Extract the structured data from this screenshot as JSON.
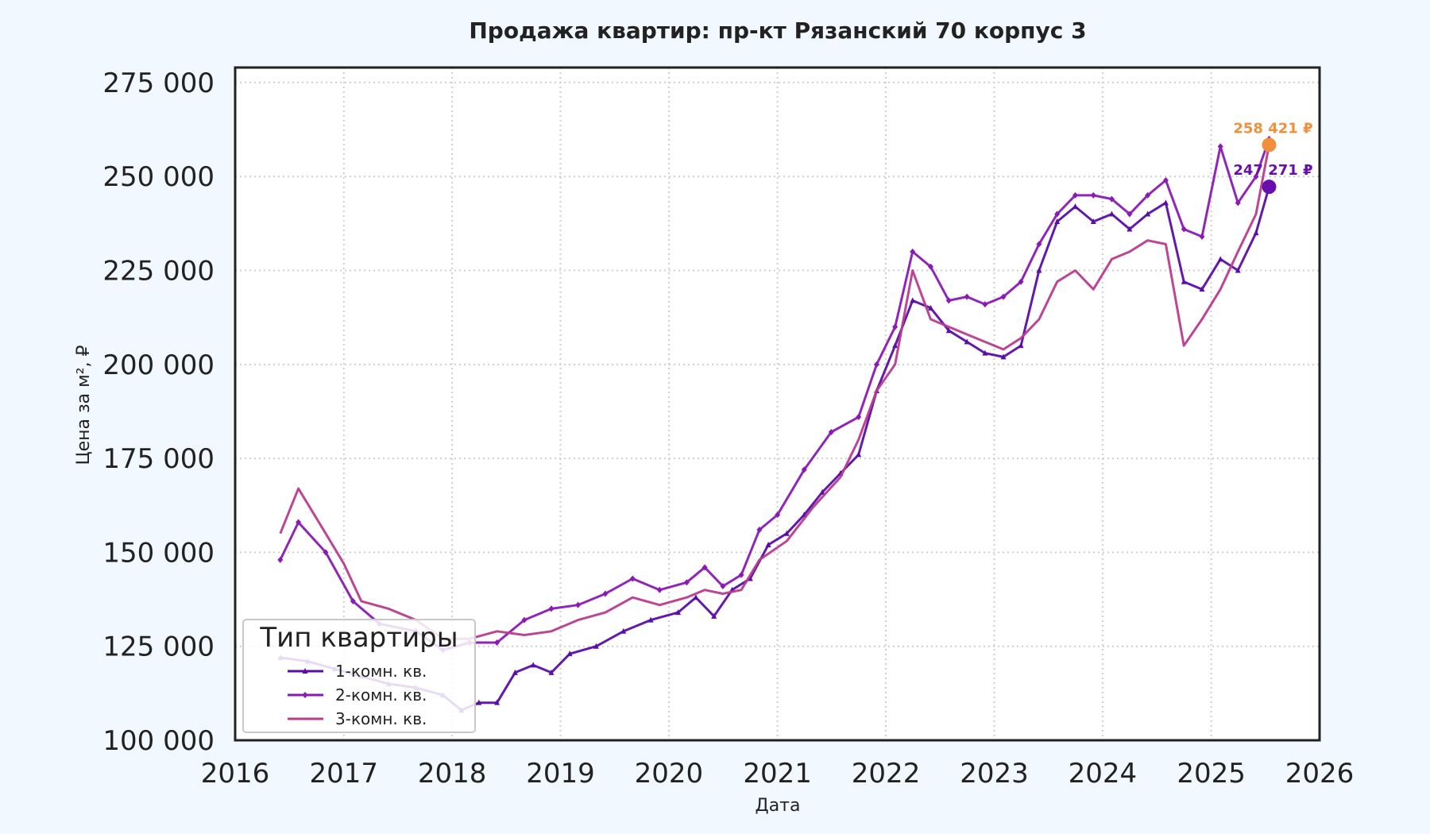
{
  "chart_data": {
    "type": "line",
    "title": "Продажа квартир: пр-кт Рязанский 70 корпус 3",
    "xlabel": "Дата",
    "ylabel": "Цена за м², ₽",
    "x_ticks": [
      "2016",
      "2017",
      "2018",
      "2019",
      "2020",
      "2021",
      "2022",
      "2023",
      "2024",
      "2025",
      "2026"
    ],
    "y_ticks": [
      "100 000",
      "125 000",
      "150 000",
      "175 000",
      "200 000",
      "225 000",
      "250 000",
      "275 000"
    ],
    "xlim": [
      "2016-01-01",
      "2026-01-01"
    ],
    "ylim": [
      100000,
      279000
    ],
    "grid": true,
    "legend": {
      "title": "Тип квартиры",
      "placement": "lower-left"
    },
    "series": [
      {
        "name": "1-комн. кв.",
        "color": "#5a0ea8",
        "marker": "triangle",
        "points": [
          [
            "2016-06-01",
            122000
          ],
          [
            "2016-09-01",
            121000
          ],
          [
            "2016-12-01",
            119000
          ],
          [
            "2017-03-01",
            117000
          ],
          [
            "2017-06-01",
            115000
          ],
          [
            "2017-09-01",
            114000
          ],
          [
            "2017-12-01",
            112000
          ],
          [
            "2018-02-01",
            108000
          ],
          [
            "2018-04-01",
            110000
          ],
          [
            "2018-06-01",
            110000
          ],
          [
            "2018-08-01",
            118000
          ],
          [
            "2018-10-01",
            120000
          ],
          [
            "2018-12-01",
            118000
          ],
          [
            "2019-02-01",
            123000
          ],
          [
            "2019-05-01",
            125000
          ],
          [
            "2019-08-01",
            129000
          ],
          [
            "2019-11-01",
            132000
          ],
          [
            "2020-02-01",
            134000
          ],
          [
            "2020-04-01",
            138000
          ],
          [
            "2020-06-01",
            133000
          ],
          [
            "2020-08-01",
            140000
          ],
          [
            "2020-10-01",
            143000
          ],
          [
            "2020-12-01",
            152000
          ],
          [
            "2021-02-01",
            155000
          ],
          [
            "2021-04-01",
            160000
          ],
          [
            "2021-06-01",
            166000
          ],
          [
            "2021-08-01",
            171000
          ],
          [
            "2021-10-01",
            176000
          ],
          [
            "2021-12-01",
            193000
          ],
          [
            "2022-02-01",
            205000
          ],
          [
            "2022-04-01",
            217000
          ],
          [
            "2022-06-01",
            215000
          ],
          [
            "2022-08-01",
            209000
          ],
          [
            "2022-10-01",
            206000
          ],
          [
            "2022-12-01",
            203000
          ],
          [
            "2023-02-01",
            202000
          ],
          [
            "2023-04-01",
            205000
          ],
          [
            "2023-06-01",
            225000
          ],
          [
            "2023-08-01",
            238000
          ],
          [
            "2023-10-01",
            242000
          ],
          [
            "2023-12-01",
            238000
          ],
          [
            "2024-02-01",
            240000
          ],
          [
            "2024-04-01",
            236000
          ],
          [
            "2024-06-01",
            240000
          ],
          [
            "2024-08-01",
            243000
          ],
          [
            "2024-10-01",
            222000
          ],
          [
            "2024-12-01",
            220000
          ],
          [
            "2025-02-01",
            228000
          ],
          [
            "2025-04-01",
            225000
          ],
          [
            "2025-06-01",
            235000
          ],
          [
            "2025-07-15",
            247271
          ]
        ],
        "last_label": "247 271 ₽"
      },
      {
        "name": "2-комн. кв.",
        "color": "#8a1ab4",
        "marker": "diamond",
        "points": [
          [
            "2016-06-01",
            148000
          ],
          [
            "2016-08-01",
            158000
          ],
          [
            "2016-11-01",
            150000
          ],
          [
            "2017-02-01",
            137000
          ],
          [
            "2017-05-01",
            131000
          ],
          [
            "2017-09-01",
            129000
          ],
          [
            "2017-12-01",
            124000
          ],
          [
            "2018-03-01",
            126000
          ],
          [
            "2018-06-01",
            126000
          ],
          [
            "2018-09-01",
            132000
          ],
          [
            "2018-12-01",
            135000
          ],
          [
            "2019-03-01",
            136000
          ],
          [
            "2019-06-01",
            139000
          ],
          [
            "2019-09-01",
            143000
          ],
          [
            "2019-12-01",
            140000
          ],
          [
            "2020-03-01",
            142000
          ],
          [
            "2020-05-01",
            146000
          ],
          [
            "2020-07-01",
            141000
          ],
          [
            "2020-09-01",
            144000
          ],
          [
            "2020-11-01",
            156000
          ],
          [
            "2021-01-01",
            160000
          ],
          [
            "2021-04-01",
            172000
          ],
          [
            "2021-07-01",
            182000
          ],
          [
            "2021-10-01",
            186000
          ],
          [
            "2021-12-01",
            200000
          ],
          [
            "2022-02-01",
            210000
          ],
          [
            "2022-04-01",
            230000
          ],
          [
            "2022-06-01",
            226000
          ],
          [
            "2022-08-01",
            217000
          ],
          [
            "2022-10-01",
            218000
          ],
          [
            "2022-12-01",
            216000
          ],
          [
            "2023-02-01",
            218000
          ],
          [
            "2023-04-01",
            222000
          ],
          [
            "2023-06-01",
            232000
          ],
          [
            "2023-08-01",
            240000
          ],
          [
            "2023-10-01",
            245000
          ],
          [
            "2023-12-01",
            245000
          ],
          [
            "2024-02-01",
            244000
          ],
          [
            "2024-04-01",
            240000
          ],
          [
            "2024-06-01",
            245000
          ],
          [
            "2024-08-01",
            249000
          ],
          [
            "2024-10-01",
            236000
          ],
          [
            "2024-12-01",
            234000
          ],
          [
            "2025-02-01",
            258000
          ],
          [
            "2025-04-01",
            243000
          ],
          [
            "2025-06-01",
            250000
          ],
          [
            "2025-07-15",
            260000
          ]
        ]
      },
      {
        "name": "3-комн. кв.",
        "color": "#b83b8e",
        "marker": "none",
        "points": [
          [
            "2016-06-01",
            155000
          ],
          [
            "2016-08-01",
            167000
          ],
          [
            "2016-11-01",
            155000
          ],
          [
            "2017-01-01",
            147000
          ],
          [
            "2017-03-01",
            137000
          ],
          [
            "2017-06-01",
            135000
          ],
          [
            "2017-09-01",
            132000
          ],
          [
            "2017-12-01",
            127000
          ],
          [
            "2018-03-01",
            127000
          ],
          [
            "2018-06-01",
            129000
          ],
          [
            "2018-09-01",
            128000
          ],
          [
            "2018-12-01",
            129000
          ],
          [
            "2019-03-01",
            132000
          ],
          [
            "2019-06-01",
            134000
          ],
          [
            "2019-09-01",
            138000
          ],
          [
            "2019-12-01",
            136000
          ],
          [
            "2020-03-01",
            138000
          ],
          [
            "2020-05-01",
            140000
          ],
          [
            "2020-07-01",
            139000
          ],
          [
            "2020-09-01",
            140000
          ],
          [
            "2020-11-01",
            148000
          ],
          [
            "2021-02-01",
            153000
          ],
          [
            "2021-05-01",
            162000
          ],
          [
            "2021-08-01",
            170000
          ],
          [
            "2021-10-01",
            180000
          ],
          [
            "2021-12-01",
            193000
          ],
          [
            "2022-02-01",
            200000
          ],
          [
            "2022-04-01",
            225000
          ],
          [
            "2022-06-01",
            212000
          ],
          [
            "2022-08-01",
            210000
          ],
          [
            "2022-10-01",
            208000
          ],
          [
            "2022-12-01",
            206000
          ],
          [
            "2023-02-01",
            204000
          ],
          [
            "2023-04-01",
            207000
          ],
          [
            "2023-06-01",
            212000
          ],
          [
            "2023-08-01",
            222000
          ],
          [
            "2023-10-01",
            225000
          ],
          [
            "2023-12-01",
            220000
          ],
          [
            "2024-02-01",
            228000
          ],
          [
            "2024-04-01",
            230000
          ],
          [
            "2024-06-01",
            233000
          ],
          [
            "2024-08-01",
            232000
          ],
          [
            "2024-10-01",
            205000
          ],
          [
            "2024-12-01",
            212000
          ],
          [
            "2025-02-01",
            220000
          ],
          [
            "2025-04-01",
            230000
          ],
          [
            "2025-06-01",
            240000
          ],
          [
            "2025-07-15",
            258421
          ]
        ],
        "last_label": "258 421 ₽"
      }
    ],
    "end_markers": [
      {
        "date": "2025-07-15",
        "value": 247271,
        "color": "#6a0dad",
        "label": "247 271 ₽"
      },
      {
        "date": "2025-07-15",
        "value": 258421,
        "color": "#f0903c",
        "label": "258 421 ₽"
      }
    ]
  }
}
